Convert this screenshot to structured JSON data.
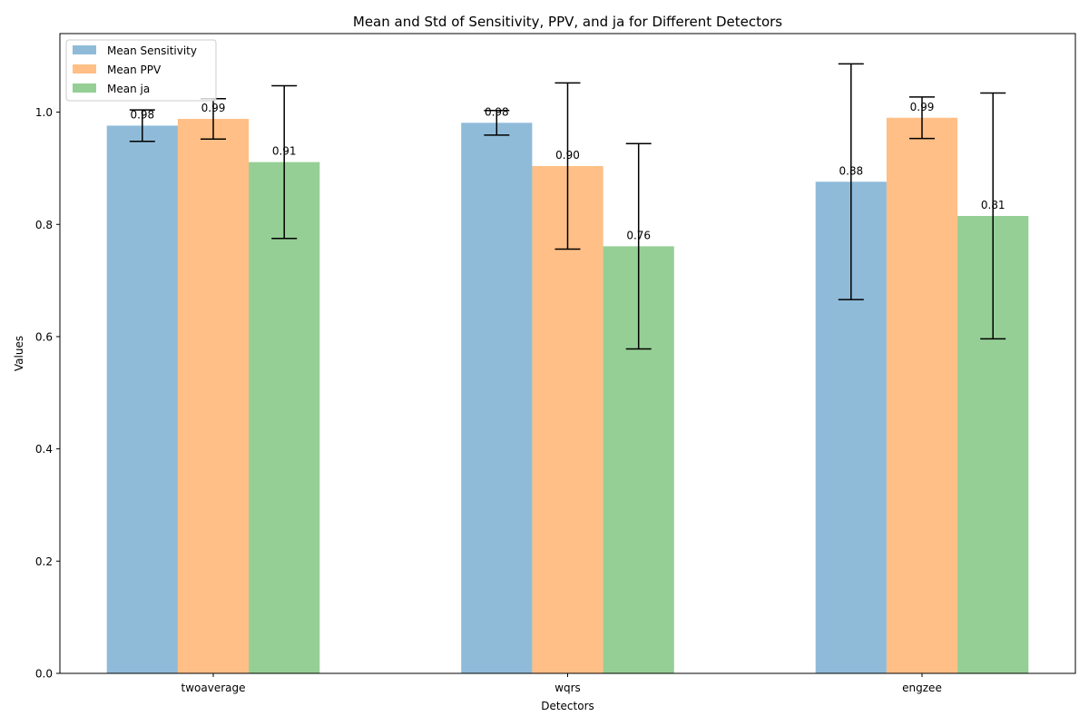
{
  "chart_data": {
    "type": "bar",
    "title": "Mean and Std of Sensitivity, PPV, and ja for Different Detectors",
    "xlabel": "Detectors",
    "ylabel": "Values",
    "categories": [
      "twoaverage",
      "wqrs",
      "engzee"
    ],
    "ylim": [
      0,
      1.14
    ],
    "yticks": [
      "0.0",
      "0.2",
      "0.4",
      "0.6",
      "0.8",
      "1.0"
    ],
    "grid": false,
    "legend_position": "upper-left",
    "series": [
      {
        "name": "Mean Sensitivity",
        "color": "#1f77b4",
        "values": [
          0.976,
          0.981,
          0.876
        ],
        "std": [
          0.028,
          0.022,
          0.21
        ],
        "labels": [
          "0.98",
          "0.98",
          "0.88"
        ]
      },
      {
        "name": "Mean PPV",
        "color": "#ff7f0e",
        "values": [
          0.988,
          0.904,
          0.99
        ],
        "std": [
          0.036,
          0.148,
          0.037
        ],
        "labels": [
          "0.99",
          "0.90",
          "0.99"
        ]
      },
      {
        "name": "Mean ja",
        "color": "#2ca02c",
        "values": [
          0.911,
          0.761,
          0.815
        ],
        "std": [
          0.136,
          0.183,
          0.219
        ],
        "labels": [
          "0.91",
          "0.76",
          "0.81"
        ]
      }
    ]
  }
}
